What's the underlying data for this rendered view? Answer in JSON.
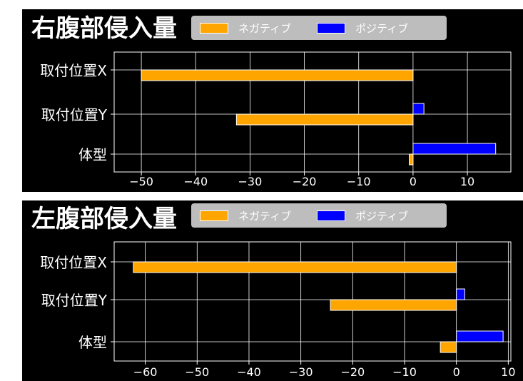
{
  "colors": {
    "background": "#000000",
    "negative": "#ffa500",
    "positive": "#0000ff",
    "grid": "#ffffff",
    "text": "#ffffff",
    "legend_bg": "#bdbdbd"
  },
  "legend": {
    "negative_label": "ネガティブ",
    "positive_label": "ポジティブ"
  },
  "chart_data": [
    {
      "type": "bar",
      "orientation": "horizontal",
      "title": "右腹部侵入量",
      "categories": [
        "取付位置X",
        "取付位置Y",
        "体型"
      ],
      "series": [
        {
          "name": "ネガティブ",
          "color": "#ffa500",
          "values": [
            -50,
            -32.5,
            -0.7
          ]
        },
        {
          "name": "ポジティブ",
          "color": "#0000ff",
          "values": [
            0,
            2,
            15.2
          ]
        }
      ],
      "xlim": [
        -55,
        18
      ],
      "xticks": [
        -50,
        -40,
        -30,
        -20,
        -10,
        0,
        10
      ],
      "grid": true,
      "legend_position": "top"
    },
    {
      "type": "bar",
      "orientation": "horizontal",
      "title": "左腹部侵入量",
      "categories": [
        "取付位置X",
        "取付位置Y",
        "体型"
      ],
      "series": [
        {
          "name": "ネガティブ",
          "color": "#ffa500",
          "values": [
            -62.3,
            -24.3,
            -3.1
          ]
        },
        {
          "name": "ポジティブ",
          "color": "#0000ff",
          "values": [
            0,
            1.6,
            9
          ]
        }
      ],
      "xlim": [
        -66,
        10.5
      ],
      "xticks": [
        -60,
        -50,
        -40,
        -30,
        -20,
        -10,
        0,
        10
      ],
      "grid": true,
      "legend_position": "top"
    }
  ]
}
